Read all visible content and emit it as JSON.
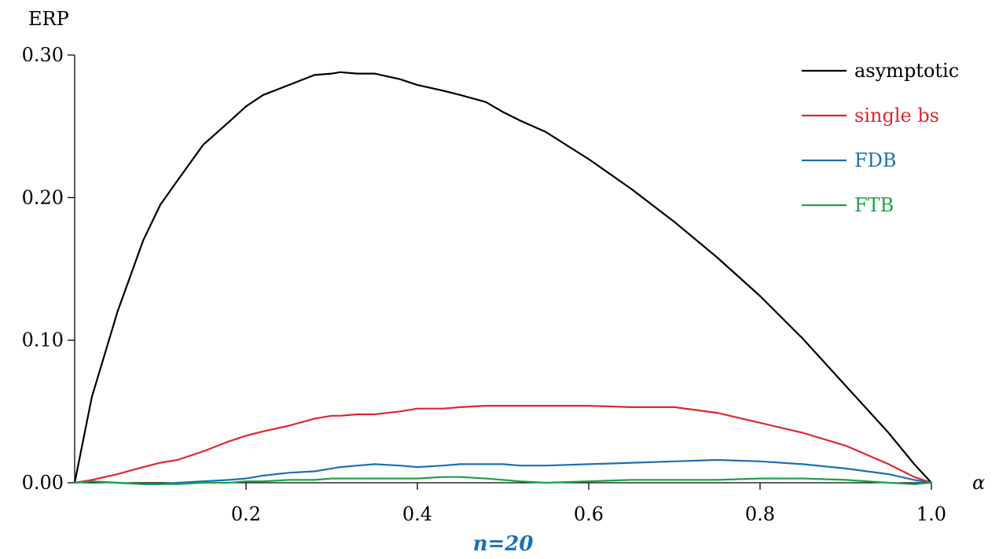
{
  "chart_data": {
    "type": "line",
    "ylabel": "ERP",
    "xlabel": "α",
    "caption": "n=20",
    "xlim": [
      0,
      1
    ],
    "ylim": [
      0,
      0.3
    ],
    "x_ticks": [
      0.2,
      0.4,
      0.6,
      0.8,
      1.0
    ],
    "x_tick_labels": [
      "0.2",
      "0.4",
      "0.6",
      "0.8",
      "1.0"
    ],
    "y_ticks": [
      0.0,
      0.1,
      0.2,
      0.3
    ],
    "y_tick_labels": [
      "0.00",
      "0.10",
      "0.20",
      "0.30"
    ],
    "grid": false,
    "legend_position": "top-right",
    "x": [
      0,
      0.02,
      0.05,
      0.08,
      0.1,
      0.12,
      0.15,
      0.18,
      0.2,
      0.22,
      0.25,
      0.28,
      0.3,
      0.31,
      0.33,
      0.35,
      0.38,
      0.4,
      0.43,
      0.45,
      0.48,
      0.5,
      0.52,
      0.55,
      0.6,
      0.65,
      0.7,
      0.75,
      0.8,
      0.85,
      0.9,
      0.95,
      0.98,
      1.0
    ],
    "series": [
      {
        "name": "asymptotic",
        "color": "#000000",
        "values": [
          0,
          0.06,
          0.12,
          0.17,
          0.195,
          0.212,
          0.237,
          0.253,
          0.264,
          0.272,
          0.279,
          0.286,
          0.287,
          0.288,
          0.287,
          0.287,
          0.283,
          0.279,
          0.275,
          0.272,
          0.267,
          0.26,
          0.254,
          0.246,
          0.227,
          0.206,
          0.183,
          0.158,
          0.131,
          0.101,
          0.068,
          0.035,
          0.013,
          0
        ]
      },
      {
        "name": "single bs",
        "color": "#e0262f",
        "values": [
          0,
          0.002,
          0.006,
          0.011,
          0.014,
          0.016,
          0.022,
          0.029,
          0.033,
          0.036,
          0.04,
          0.045,
          0.047,
          0.047,
          0.048,
          0.048,
          0.05,
          0.052,
          0.052,
          0.053,
          0.054,
          0.054,
          0.054,
          0.054,
          0.054,
          0.053,
          0.053,
          0.049,
          0.042,
          0.035,
          0.026,
          0.013,
          0.004,
          0
        ]
      },
      {
        "name": "FDB",
        "color": "#1f6fb2",
        "values": [
          0,
          0.001,
          0.0,
          -0.001,
          -0.001,
          0.0,
          0.001,
          0.002,
          0.003,
          0.005,
          0.007,
          0.008,
          0.01,
          0.011,
          0.012,
          0.013,
          0.012,
          0.011,
          0.012,
          0.013,
          0.013,
          0.013,
          0.012,
          0.012,
          0.013,
          0.014,
          0.015,
          0.016,
          0.015,
          0.013,
          0.01,
          0.006,
          0.002,
          0
        ]
      },
      {
        "name": "FTB",
        "color": "#1aa34a",
        "values": [
          0,
          0.001,
          0.0,
          -0.001,
          -0.001,
          -0.001,
          0.0,
          0.0,
          0.001,
          0.001,
          0.002,
          0.002,
          0.003,
          0.003,
          0.003,
          0.003,
          0.003,
          0.003,
          0.004,
          0.004,
          0.003,
          0.002,
          0.001,
          0.0,
          0.001,
          0.002,
          0.002,
          0.002,
          0.003,
          0.003,
          0.002,
          0.0,
          -0.001,
          0
        ]
      }
    ]
  }
}
